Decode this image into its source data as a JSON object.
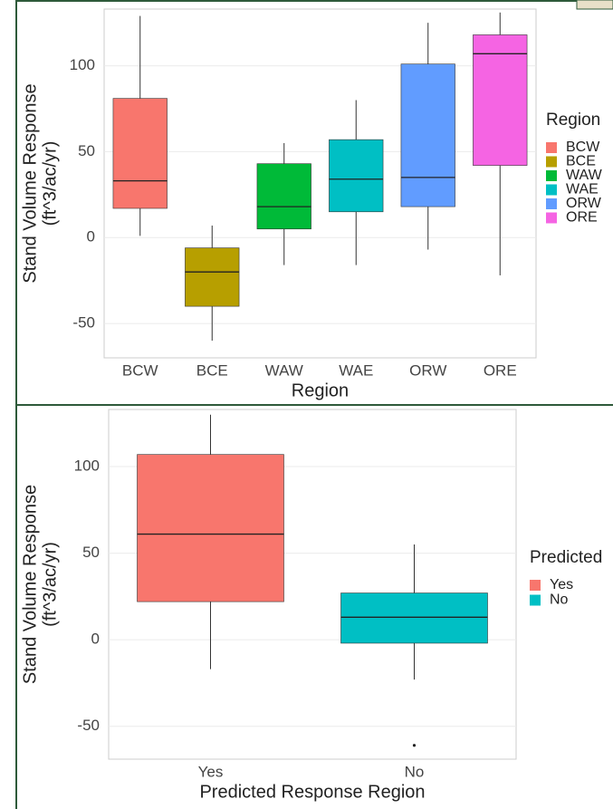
{
  "chart_data": [
    {
      "type": "box",
      "x_label": "Region",
      "y_label": [
        "Stand Volume Response",
        "(ft^3/ac/yr)"
      ],
      "legend_title": "Region",
      "categories": [
        "BCW",
        "BCE",
        "WAW",
        "WAE",
        "ORW",
        "ORE"
      ],
      "colors": [
        "#F8766D",
        "#B79F00",
        "#00BA38",
        "#00BFC4",
        "#619CFF",
        "#F564E3"
      ],
      "boxes": [
        {
          "whisker_low": 1,
          "q1": 17,
          "median": 33,
          "q3": 81,
          "whisker_high": 129
        },
        {
          "whisker_low": -60,
          "q1": -40,
          "median": -20,
          "q3": -6,
          "whisker_high": 7
        },
        {
          "whisker_low": -16,
          "q1": 5,
          "median": 18,
          "q3": 43,
          "whisker_high": 55
        },
        {
          "whisker_low": -16,
          "q1": 15,
          "median": 34,
          "q3": 57,
          "whisker_high": 80
        },
        {
          "whisker_low": -7,
          "q1": 18,
          "median": 35,
          "q3": 101,
          "whisker_high": 125
        },
        {
          "whisker_low": -22,
          "q1": 42,
          "median": 107,
          "q3": 118,
          "whisker_high": 131
        }
      ],
      "ylim": [
        -70,
        133
      ],
      "yticks": [
        -50,
        0,
        50,
        100
      ],
      "grid": true
    },
    {
      "type": "box",
      "x_label": "Predicted Response Region",
      "y_label": [
        "Stand Volume Response",
        "(ft^3/ac/yr)"
      ],
      "legend_title": "Predicted",
      "categories": [
        "Yes",
        "No"
      ],
      "colors": [
        "#F8766D",
        "#00BFC4"
      ],
      "boxes": [
        {
          "whisker_low": -17,
          "q1": 22,
          "median": 61,
          "q3": 107,
          "whisker_high": 130
        },
        {
          "whisker_low": -23,
          "q1": -2,
          "median": 13,
          "q3": 27,
          "whisker_high": 55,
          "outliers": [
            -61
          ]
        }
      ],
      "ylim": [
        -69,
        133
      ],
      "yticks": [
        -50,
        0,
        50,
        100
      ],
      "grid": true
    }
  ]
}
